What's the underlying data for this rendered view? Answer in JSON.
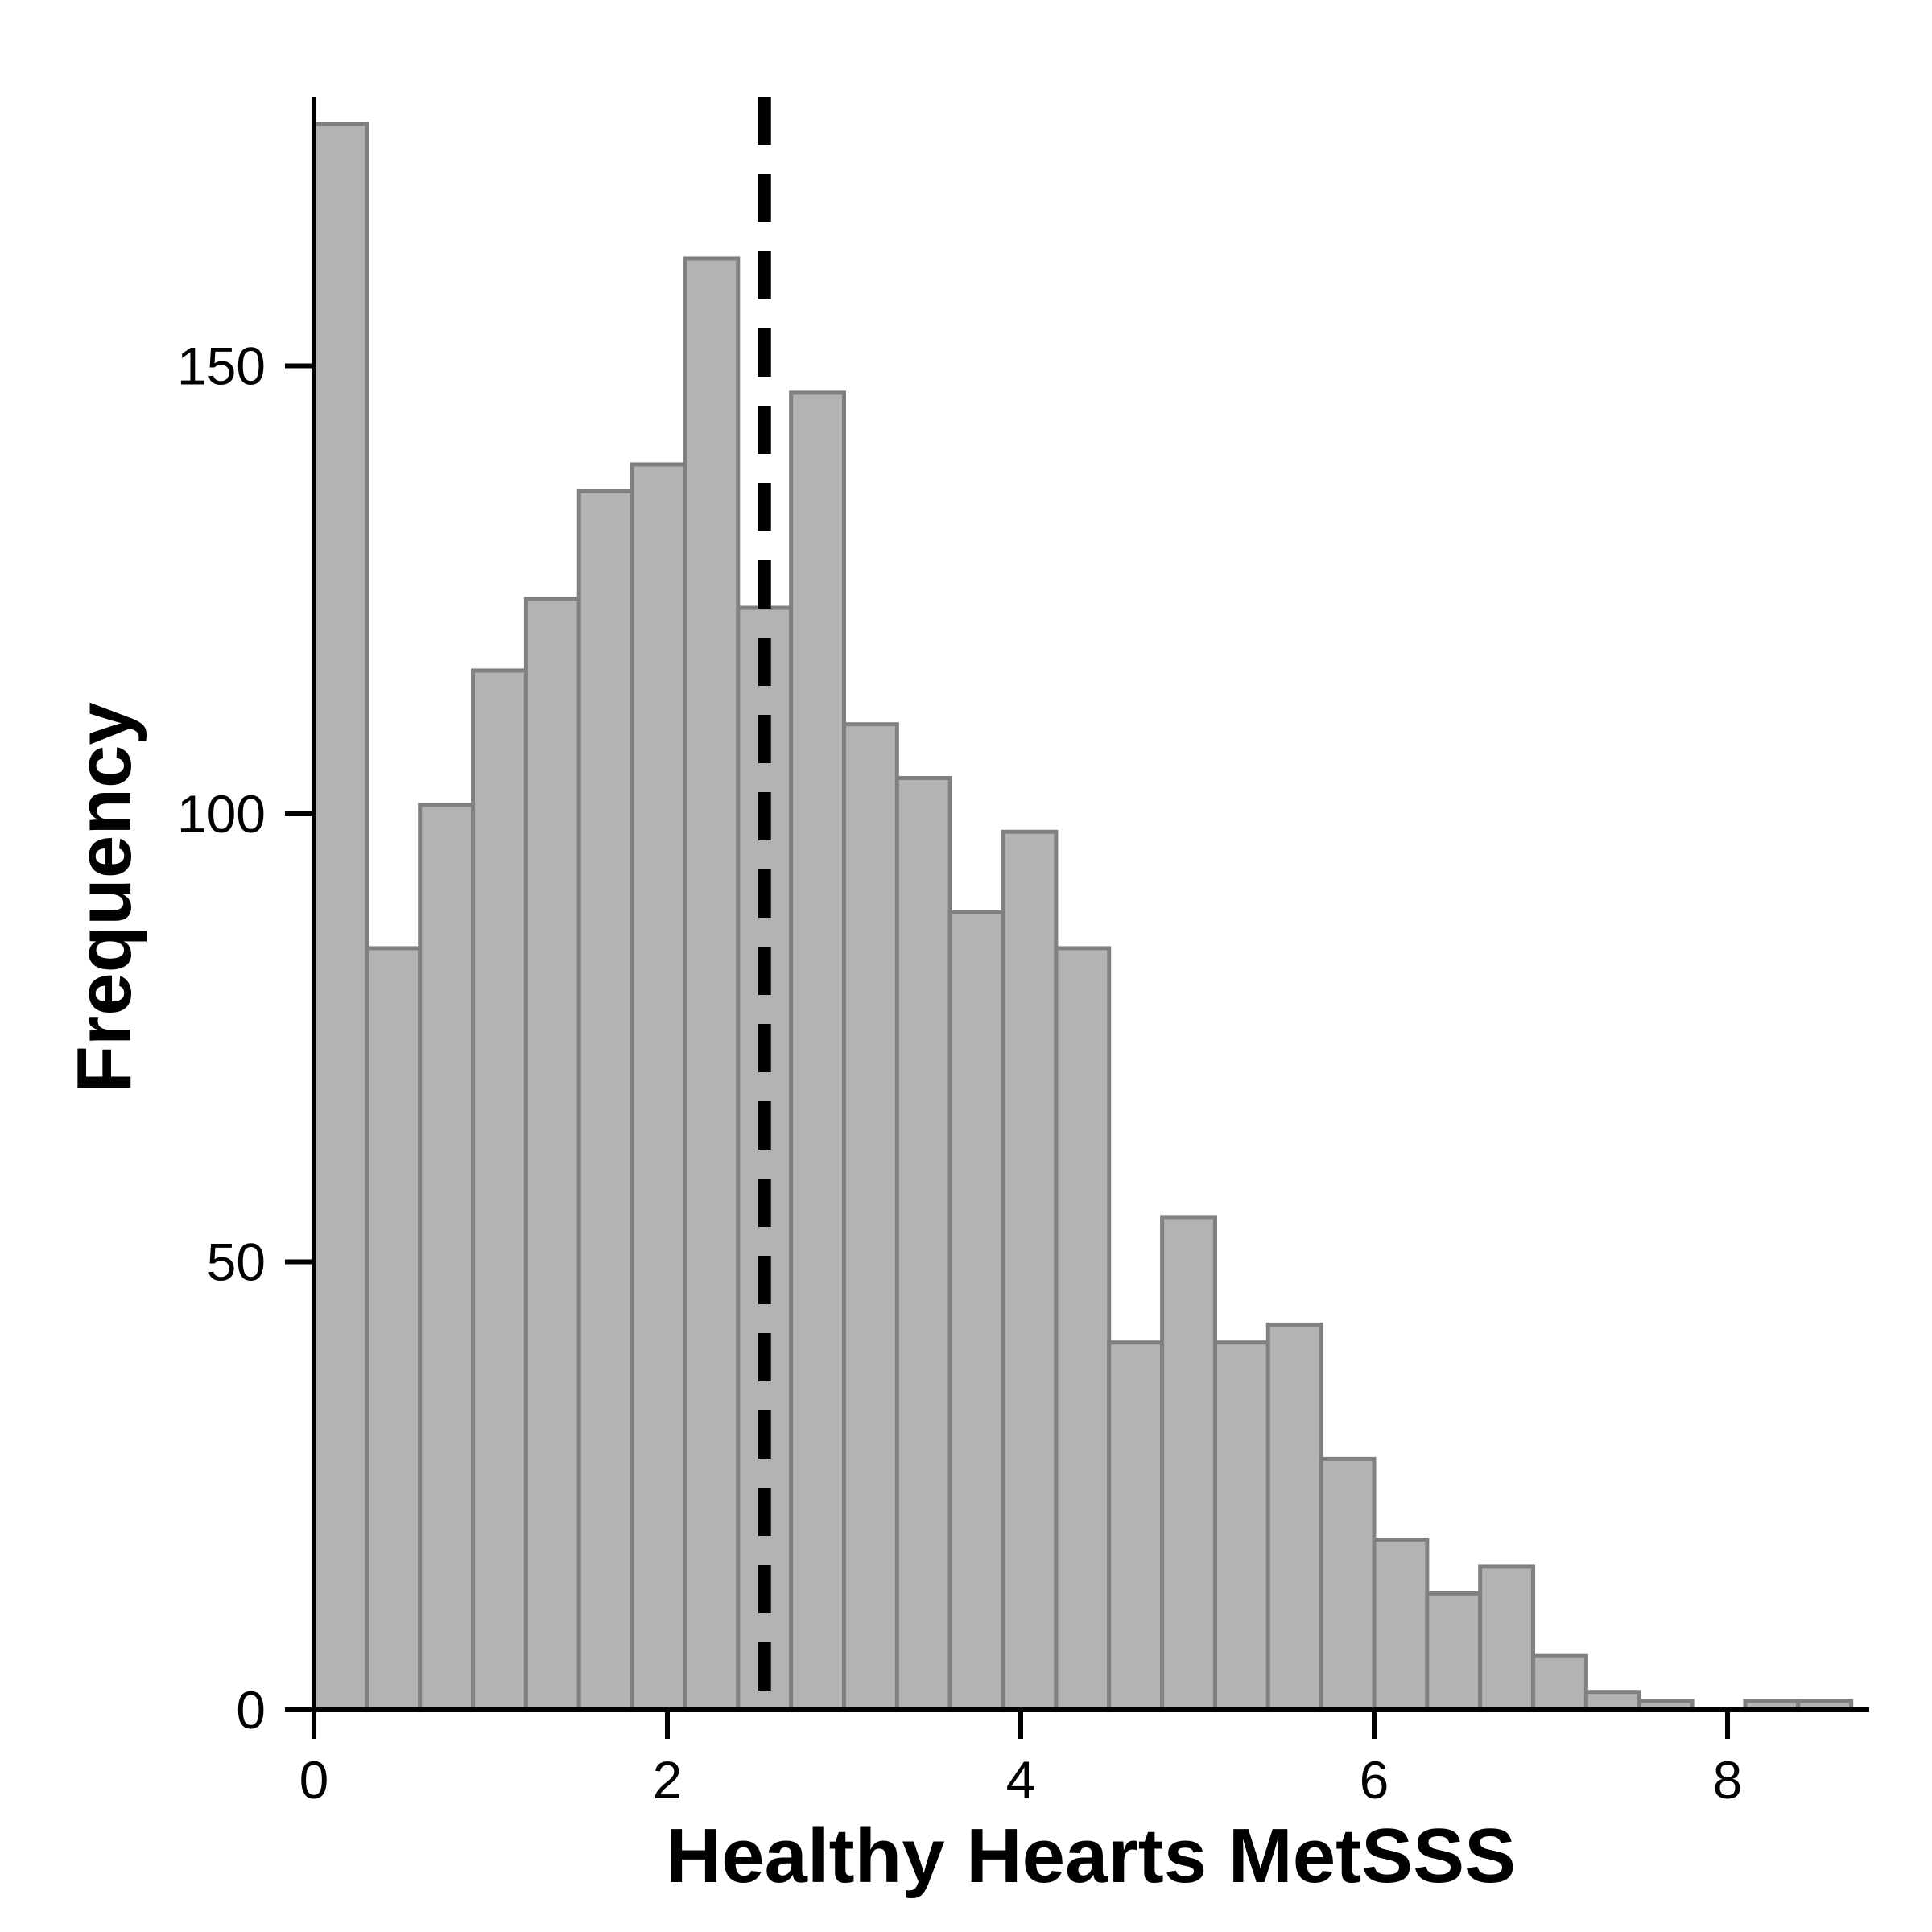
{
  "chart_data": {
    "type": "bar",
    "title": "",
    "xlabel": "Healthy Hearts MetSSS",
    "ylabel": "Frequency",
    "bin_width": 0.3,
    "bins": [
      {
        "start": 0.0,
        "count": 177
      },
      {
        "start": 0.3,
        "count": 85
      },
      {
        "start": 0.6,
        "count": 101
      },
      {
        "start": 0.9,
        "count": 116
      },
      {
        "start": 1.2,
        "count": 124
      },
      {
        "start": 1.5,
        "count": 136
      },
      {
        "start": 1.8,
        "count": 139
      },
      {
        "start": 2.1,
        "count": 162
      },
      {
        "start": 2.4,
        "count": 123
      },
      {
        "start": 2.7,
        "count": 147
      },
      {
        "start": 3.0,
        "count": 110
      },
      {
        "start": 3.3,
        "count": 104
      },
      {
        "start": 3.6,
        "count": 89
      },
      {
        "start": 3.9,
        "count": 98
      },
      {
        "start": 4.2,
        "count": 85
      },
      {
        "start": 4.5,
        "count": 41
      },
      {
        "start": 4.8,
        "count": 55
      },
      {
        "start": 5.1,
        "count": 41
      },
      {
        "start": 5.4,
        "count": 43
      },
      {
        "start": 5.7,
        "count": 28
      },
      {
        "start": 6.0,
        "count": 19
      },
      {
        "start": 6.3,
        "count": 13
      },
      {
        "start": 6.6,
        "count": 16
      },
      {
        "start": 6.9,
        "count": 6
      },
      {
        "start": 7.2,
        "count": 2
      },
      {
        "start": 7.5,
        "count": 1
      },
      {
        "start": 7.8,
        "count": 0
      },
      {
        "start": 8.1,
        "count": 1
      },
      {
        "start": 8.4,
        "count": 1
      }
    ],
    "vline": {
      "x": 2.55,
      "style": "dashed"
    },
    "xlim": [
      0,
      8.8
    ],
    "ylim": [
      0,
      180
    ],
    "xticks": [
      0,
      2,
      4,
      6,
      8
    ],
    "yticks": [
      0,
      50,
      100,
      150
    ],
    "grid": false,
    "bar_fill": "#b3b3b3",
    "bar_stroke": "#808080"
  }
}
